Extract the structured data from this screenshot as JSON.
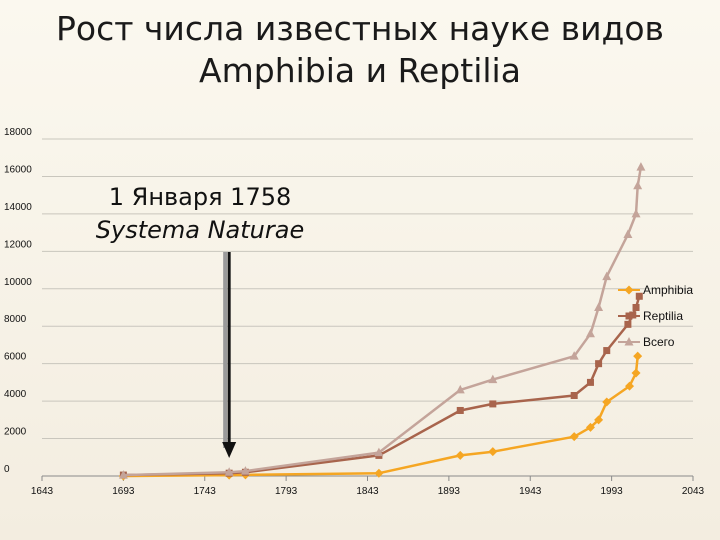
{
  "title": {
    "line1": "Рост числа известных науке видов",
    "line2": "Amphibia и Reptilia"
  },
  "annotation": {
    "line1": "1 Января 1758",
    "line2": "Systema Naturae",
    "arrow_x_year": 1758
  },
  "chart_data": {
    "type": "line",
    "title": "Рост числа известных науке видов Amphibia и Reptilia",
    "xlabel": "",
    "ylabel": "",
    "xlim": [
      1643,
      2043
    ],
    "ylim": [
      0,
      18000
    ],
    "x_ticks": [
      "1643",
      "1693",
      "1743",
      "1793",
      "1843",
      "1893",
      "1943",
      "1993",
      "2043"
    ],
    "y_ticks": [
      "0",
      "2000",
      "4000",
      "6000",
      "8000",
      "10000",
      "12000",
      "14000",
      "16000",
      "18000"
    ],
    "grid": "horizontal",
    "legend_position": "right",
    "series": [
      {
        "name": "Amphibia",
        "color": "#f5a623",
        "marker": "diamond",
        "points": [
          [
            1693,
            0
          ],
          [
            1758,
            50
          ],
          [
            1768,
            60
          ],
          [
            1850,
            150
          ],
          [
            1900,
            1100
          ],
          [
            1920,
            1300
          ],
          [
            1970,
            2100
          ],
          [
            1980,
            2600
          ],
          [
            1985,
            3000
          ],
          [
            1990,
            3950
          ],
          [
            2004,
            4800
          ],
          [
            2008,
            5500
          ],
          [
            2009,
            6400
          ]
        ]
      },
      {
        "name": "Reptilia",
        "color": "#a8644c",
        "marker": "square",
        "points": [
          [
            1693,
            50
          ],
          [
            1758,
            150
          ],
          [
            1768,
            200
          ],
          [
            1850,
            1100
          ],
          [
            1900,
            3500
          ],
          [
            1920,
            3850
          ],
          [
            1970,
            4300
          ],
          [
            1980,
            5000
          ],
          [
            1985,
            6000
          ],
          [
            1990,
            6700
          ],
          [
            2003,
            8100
          ],
          [
            2006,
            8600
          ],
          [
            2008,
            9000
          ],
          [
            2010,
            9600
          ]
        ]
      },
      {
        "name": "Всего",
        "color": "#c4a49a",
        "marker": "triangle",
        "points": [
          [
            1693,
            50
          ],
          [
            1758,
            200
          ],
          [
            1768,
            260
          ],
          [
            1850,
            1250
          ],
          [
            1900,
            4600
          ],
          [
            1920,
            5150
          ],
          [
            1970,
            6400
          ],
          [
            1980,
            7600
          ],
          [
            1985,
            9000
          ],
          [
            1990,
            10650
          ],
          [
            2003,
            12900
          ],
          [
            2008,
            14000
          ],
          [
            2009,
            15500
          ],
          [
            2011,
            16500
          ]
        ]
      }
    ]
  }
}
